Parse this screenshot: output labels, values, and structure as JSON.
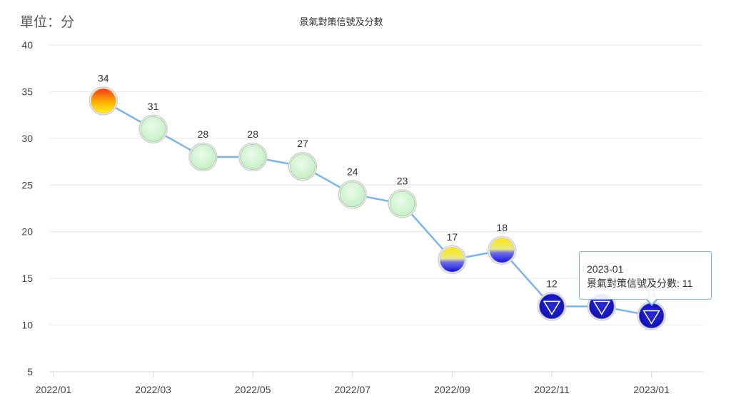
{
  "unit_label": "單位：分",
  "chart_data": {
    "type": "line",
    "title": "景氣對策信號及分數",
    "ylabel": "單位：分",
    "xlabel": "",
    "ylim": [
      5,
      40
    ],
    "yticks": [
      5,
      10,
      15,
      20,
      25,
      30,
      35,
      40
    ],
    "xticks": [
      "2022/01",
      "2022/03",
      "2022/05",
      "2022/07",
      "2022/09",
      "2022/11",
      "2023/01"
    ],
    "x": [
      "2022-02",
      "2022-03",
      "2022-04",
      "2022-05",
      "2022-06",
      "2022-07",
      "2022-08",
      "2022-09",
      "2022-10",
      "2022-11",
      "2022-12",
      "2023-01"
    ],
    "series": [
      {
        "name": "景氣對策信號及分數",
        "values": [
          34,
          31,
          28,
          28,
          27,
          24,
          23,
          17,
          18,
          12,
          12,
          11
        ],
        "signals": [
          "yellow-red",
          "green",
          "green",
          "green",
          "green",
          "green",
          "green",
          "yellow-blue",
          "yellow-blue",
          "blue",
          "blue",
          "blue"
        ]
      }
    ],
    "line_color": "#7cb5ec",
    "grid": true,
    "legend": "none"
  },
  "tooltip": {
    "title": "2023-01",
    "text": "景氣對策信號及分數: 11"
  }
}
